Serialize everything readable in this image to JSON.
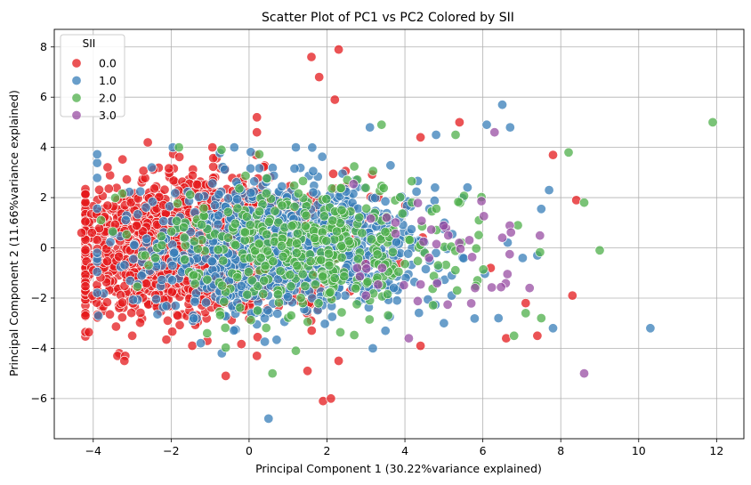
{
  "chart_data": {
    "type": "scatter",
    "title": "Scatter Plot of PC1 vs PC2 Colored by SII",
    "xlabel": "Principal Component 1 (30.22%variance explained)",
    "ylabel": "Principal Component 2 (11.66%variance explained)",
    "xlim": [
      -5.0,
      12.7
    ],
    "ylim": [
      -7.6,
      8.7
    ],
    "xticks": [
      -4,
      -2,
      0,
      2,
      4,
      6,
      8,
      10,
      12
    ],
    "yticks": [
      -6,
      -4,
      -2,
      0,
      2,
      4,
      6,
      8
    ],
    "grid": true,
    "legend_title": "SII",
    "legend_position": "top-left",
    "series": [
      {
        "name": "0.0",
        "color": "#e41a1c",
        "n_points_approx": 1600,
        "points": [
          [
            2.3,
            7.9
          ],
          [
            1.6,
            7.6
          ],
          [
            1.8,
            6.8
          ],
          [
            2.2,
            5.9
          ],
          [
            0.2,
            5.2
          ],
          [
            0.2,
            4.6
          ],
          [
            5.4,
            5.0
          ],
          [
            -2.6,
            4.2
          ],
          [
            4.4,
            4.4
          ],
          [
            7.8,
            3.7
          ],
          [
            8.4,
            1.9
          ],
          [
            -4.3,
            0.6
          ],
          [
            -4.0,
            -0.9
          ],
          [
            -3.2,
            -4.5
          ],
          [
            -3.0,
            -3.5
          ],
          [
            -0.6,
            -5.1
          ],
          [
            0.2,
            -4.3
          ],
          [
            1.5,
            -4.9
          ],
          [
            1.9,
            -6.1
          ],
          [
            2.1,
            -6.0
          ],
          [
            2.3,
            -4.5
          ],
          [
            4.4,
            -3.9
          ],
          [
            6.6,
            -3.6
          ],
          [
            7.4,
            -3.5
          ],
          [
            8.3,
            -1.9
          ],
          [
            7.1,
            -2.2
          ],
          [
            6.2,
            -0.8
          ]
        ]
      },
      {
        "name": "1.0",
        "color": "#377eb8",
        "n_points_approx": 1000,
        "points": [
          [
            6.5,
            5.7
          ],
          [
            6.7,
            4.8
          ],
          [
            6.1,
            4.9
          ],
          [
            3.1,
            4.8
          ],
          [
            4.8,
            4.5
          ],
          [
            7.7,
            2.3
          ],
          [
            7.4,
            -0.3
          ],
          [
            10.3,
            -3.2
          ],
          [
            7.8,
            -3.2
          ],
          [
            0.5,
            -6.8
          ],
          [
            6.4,
            -2.8
          ],
          [
            5.0,
            -3.0
          ],
          [
            -2.5,
            3.2
          ],
          [
            1.2,
            4.0
          ],
          [
            -0.7,
            -4.2
          ],
          [
            3.5,
            -3.3
          ],
          [
            5.2,
            -1.9
          ],
          [
            -3.9,
            -0.2
          ]
        ]
      },
      {
        "name": "2.0",
        "color": "#4daf4a",
        "n_points_approx": 400,
        "points": [
          [
            11.9,
            5.0
          ],
          [
            8.2,
            3.8
          ],
          [
            8.6,
            1.8
          ],
          [
            9.0,
            -0.1
          ],
          [
            7.1,
            -2.6
          ],
          [
            7.5,
            -2.8
          ],
          [
            6.8,
            -3.5
          ],
          [
            3.4,
            4.9
          ],
          [
            5.3,
            4.5
          ],
          [
            -1.8,
            4.0
          ],
          [
            0.6,
            -5.0
          ],
          [
            1.2,
            -4.1
          ],
          [
            -3.8,
            1.1
          ],
          [
            6.9,
            0.9
          ],
          [
            5.9,
            1.1
          ]
        ]
      },
      {
        "name": "3.0",
        "color": "#984ea3",
        "n_points_approx": 40,
        "points": [
          [
            6.3,
            4.6
          ],
          [
            8.6,
            -5.0
          ],
          [
            6.5,
            0.4
          ],
          [
            7.2,
            -1.6
          ],
          [
            5.8,
            -1.6
          ],
          [
            3.0,
            -1.9
          ],
          [
            4.1,
            -3.6
          ]
        ]
      }
    ]
  }
}
